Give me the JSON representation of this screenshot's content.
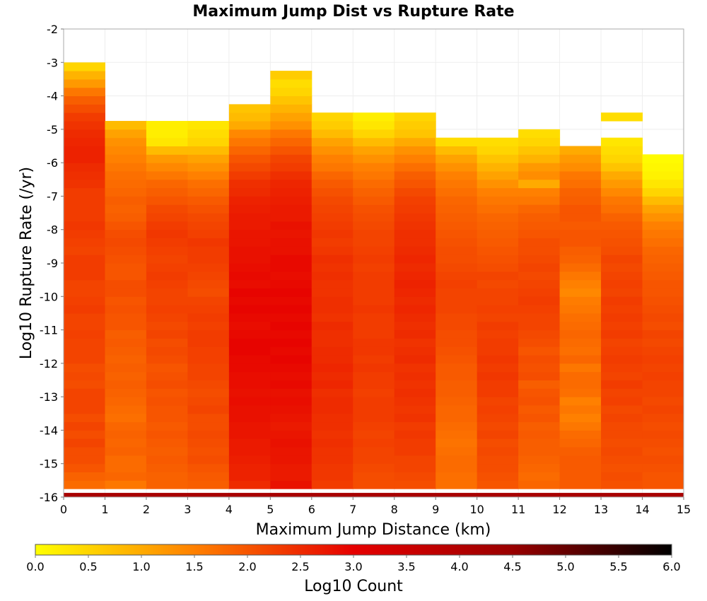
{
  "chart_data": {
    "type": "heatmap",
    "title": "Maximum Jump Dist vs Rupture Rate",
    "xlabel": "Maximum Jump Distance (km)",
    "ylabel": "Log10 Rupture Rate (/yr)",
    "xlim": [
      0,
      15
    ],
    "ylim": [
      -16,
      -2
    ],
    "x_ticks": [
      "0",
      "1",
      "2",
      "3",
      "4",
      "5",
      "6",
      "7",
      "8",
      "9",
      "10",
      "11",
      "12",
      "13",
      "14",
      "15"
    ],
    "y_ticks": [
      "-2",
      "-3",
      "-4",
      "-5",
      "-6",
      "-7",
      "-8",
      "-9",
      "-10",
      "-11",
      "-12",
      "-13",
      "-14",
      "-15",
      "-16"
    ],
    "x_bin_width": 1,
    "y_bin_width": 0.25,
    "y_bin_start": -15.75,
    "colorbar": {
      "label": "Log10 Count",
      "range": [
        0,
        6
      ],
      "ticks": [
        "0.0",
        "0.5",
        "1.0",
        "1.5",
        "2.0",
        "2.5",
        "3.0",
        "3.5",
        "4.0",
        "4.5",
        "5.0",
        "5.5",
        "6.0"
      ],
      "colors": [
        "#ffff00",
        "#ff8000",
        "#e60000",
        "#990000",
        "#000000"
      ]
    },
    "bottom_row": {
      "y_range": [
        -16,
        -15.875
      ],
      "value": 4.2
    },
    "columns": [
      {
        "x": 0.5,
        "values": [
          1.75,
          1.85,
          2.0,
          2.1,
          2.1,
          2.2,
          2.1,
          2.2,
          2.1,
          2.2,
          2.2,
          2.2,
          2.1,
          2.15,
          2.1,
          2.2,
          2.2,
          2.2,
          2.25,
          2.2,
          2.2,
          2.3,
          2.25,
          2.2,
          2.2,
          2.3,
          2.3,
          2.3,
          2.2,
          2.25,
          2.3,
          2.35,
          2.3,
          2.3,
          2.3,
          2.3,
          2.4,
          2.45,
          2.5,
          2.6,
          2.6,
          2.55,
          2.5,
          2.4,
          2.3,
          2.1,
          1.9,
          1.6,
          1.2,
          0.9,
          0.5
        ]
      },
      {
        "x": 1.5,
        "values": [
          1.6,
          1.8,
          1.75,
          1.75,
          1.85,
          1.8,
          1.85,
          1.8,
          1.7,
          1.75,
          1.8,
          1.85,
          1.9,
          1.85,
          1.9,
          1.85,
          1.9,
          1.95,
          1.9,
          2.0,
          2.0,
          2.05,
          2.0,
          2.1,
          2.1,
          2.0,
          2.0,
          2.05,
          2.1,
          2.15,
          2.1,
          2.0,
          1.9,
          1.85,
          1.9,
          1.8,
          1.75,
          1.7,
          1.6,
          1.5,
          1.4,
          1.3,
          1.1,
          0.8
        ]
      },
      {
        "x": 2.5,
        "values": [
          1.85,
          1.85,
          1.9,
          1.95,
          1.9,
          1.95,
          2.0,
          1.95,
          2.0,
          2.0,
          2.05,
          2.0,
          2.1,
          2.05,
          2.0,
          2.1,
          2.15,
          2.1,
          2.2,
          2.15,
          2.2,
          2.25,
          2.2,
          2.2,
          2.25,
          2.3,
          2.25,
          2.2,
          2.25,
          2.3,
          2.35,
          2.3,
          2.2,
          2.15,
          2.0,
          1.9,
          1.8,
          1.6,
          1.4,
          1.2,
          0.8,
          0.3,
          0.2,
          0.2
        ]
      },
      {
        "x": 3.5,
        "values": [
          1.9,
          1.95,
          2.0,
          2.1,
          2.05,
          2.1,
          2.15,
          2.1,
          2.1,
          2.2,
          2.15,
          2.1,
          2.15,
          2.2,
          2.2,
          2.25,
          2.25,
          2.3,
          2.3,
          2.25,
          2.3,
          2.25,
          2.2,
          2.1,
          2.15,
          2.2,
          2.25,
          2.3,
          2.3,
          2.35,
          2.25,
          2.2,
          2.15,
          2.05,
          1.95,
          1.8,
          1.7,
          1.5,
          1.3,
          1.1,
          0.8,
          0.5,
          0.4,
          0.3
        ]
      },
      {
        "x": 4.5,
        "values": [
          2.5,
          2.6,
          2.6,
          2.65,
          2.7,
          2.7,
          2.75,
          2.75,
          2.8,
          2.8,
          2.85,
          2.8,
          2.85,
          2.85,
          2.9,
          2.9,
          2.95,
          2.95,
          2.9,
          2.85,
          2.9,
          2.95,
          2.9,
          2.95,
          2.85,
          2.9,
          2.85,
          2.8,
          2.8,
          2.75,
          2.75,
          2.7,
          2.7,
          2.65,
          2.6,
          2.5,
          2.45,
          2.3,
          2.15,
          2.0,
          1.8,
          1.6,
          1.4,
          1.0,
          0.8,
          0.7
        ]
      },
      {
        "x": 5.5,
        "values": [
          2.8,
          2.7,
          2.7,
          2.75,
          2.75,
          2.8,
          2.75,
          2.7,
          2.75,
          2.8,
          2.85,
          2.8,
          2.9,
          2.85,
          2.9,
          2.95,
          2.9,
          2.95,
          2.9,
          2.95,
          2.9,
          2.95,
          2.9,
          2.95,
          2.9,
          2.85,
          2.9,
          2.9,
          2.8,
          2.8,
          2.75,
          2.8,
          2.7,
          2.7,
          2.65,
          2.6,
          2.55,
          2.45,
          2.3,
          2.2,
          2.0,
          1.8,
          1.6,
          1.3,
          1.1,
          0.9,
          0.7,
          0.5,
          0.4,
          0.6
        ]
      },
      {
        "x": 6.5,
        "values": [
          2.3,
          2.35,
          2.35,
          2.4,
          2.4,
          2.45,
          2.4,
          2.45,
          2.45,
          2.5,
          2.5,
          2.45,
          2.55,
          2.5,
          2.55,
          2.5,
          2.5,
          2.45,
          2.45,
          2.5,
          2.4,
          2.45,
          2.45,
          2.4,
          2.4,
          2.45,
          2.4,
          2.45,
          2.35,
          2.3,
          2.35,
          2.3,
          2.25,
          2.2,
          2.15,
          2.05,
          1.95,
          1.8,
          1.6,
          1.5,
          1.3,
          1.1,
          0.8,
          0.6,
          0.5
        ]
      },
      {
        "x": 7.5,
        "values": [
          2.1,
          2.1,
          2.15,
          2.2,
          2.2,
          2.25,
          2.2,
          2.25,
          2.3,
          2.3,
          2.3,
          2.25,
          2.3,
          2.3,
          2.35,
          2.3,
          2.35,
          2.35,
          2.3,
          2.3,
          2.3,
          2.35,
          2.3,
          2.3,
          2.3,
          2.3,
          2.25,
          2.3,
          2.25,
          2.2,
          2.2,
          2.15,
          2.1,
          2.05,
          1.95,
          1.85,
          1.75,
          1.6,
          1.5,
          1.3,
          1.1,
          0.8,
          0.5,
          0.3,
          0.2
        ]
      },
      {
        "x": 8.5,
        "values": [
          2.1,
          2.15,
          2.2,
          2.2,
          2.3,
          2.3,
          2.35,
          2.3,
          2.4,
          2.35,
          2.4,
          2.45,
          2.4,
          2.45,
          2.4,
          2.5,
          2.45,
          2.4,
          2.5,
          2.45,
          2.5,
          2.55,
          2.5,
          2.55,
          2.6,
          2.55,
          2.5,
          2.55,
          2.5,
          2.45,
          2.45,
          2.4,
          2.35,
          2.3,
          2.25,
          2.15,
          2.0,
          1.9,
          1.7,
          1.5,
          1.3,
          1.0,
          0.7,
          0.6,
          0.5
        ]
      },
      {
        "x": 9.5,
        "values": [
          1.7,
          1.7,
          1.75,
          1.75,
          1.7,
          1.65,
          1.7,
          1.75,
          1.8,
          1.8,
          1.85,
          1.9,
          1.9,
          1.95,
          1.95,
          2.0,
          2.05,
          2.1,
          2.1,
          2.15,
          2.15,
          2.2,
          2.2,
          2.2,
          2.25,
          2.2,
          2.15,
          2.1,
          2.1,
          2.05,
          2.0,
          1.95,
          1.9,
          1.85,
          1.8,
          1.7,
          1.6,
          1.5,
          1.3,
          1.1,
          0.8,
          0.4
        ]
      },
      {
        "x": 10.5,
        "values": [
          2.0,
          2.05,
          2.1,
          2.1,
          2.15,
          2.1,
          2.2,
          2.15,
          2.2,
          2.25,
          2.2,
          2.3,
          2.3,
          2.35,
          2.3,
          2.35,
          2.3,
          2.3,
          2.25,
          2.3,
          2.2,
          2.25,
          2.2,
          2.2,
          2.15,
          2.2,
          2.1,
          2.05,
          2.0,
          1.95,
          1.9,
          1.85,
          1.8,
          1.7,
          1.6,
          1.5,
          1.3,
          1.1,
          0.9,
          0.7,
          0.5,
          0.4
        ]
      },
      {
        "x": 11.5,
        "values": [
          1.8,
          1.75,
          1.8,
          1.85,
          1.9,
          1.9,
          1.95,
          1.9,
          2.0,
          1.95,
          2.05,
          2.0,
          1.9,
          2.1,
          2.05,
          2.1,
          2.0,
          2.1,
          2.15,
          2.2,
          2.2,
          2.25,
          2.3,
          2.25,
          2.2,
          2.15,
          2.2,
          2.15,
          2.1,
          2.1,
          2.0,
          1.95,
          1.9,
          1.8,
          1.6,
          1.5,
          1.0,
          1.35,
          1.2,
          0.9,
          0.7,
          0.5,
          0.4
        ]
      },
      {
        "x": 12.5,
        "values": [
          1.95,
          1.95,
          1.95,
          1.95,
          1.9,
          1.8,
          1.75,
          1.6,
          1.5,
          1.6,
          1.5,
          1.7,
          1.75,
          1.75,
          1.6,
          1.8,
          1.7,
          1.75,
          1.8,
          1.75,
          1.7,
          1.6,
          1.55,
          1.4,
          1.5,
          1.6,
          1.75,
          1.85,
          1.9,
          2.0,
          2.0,
          1.95,
          2.0,
          2.0,
          1.9,
          1.85,
          1.7,
          1.6,
          1.35,
          1.2,
          1.0
        ]
      },
      {
        "x": 13.5,
        "values": [
          2.05,
          2.1,
          2.05,
          2.1,
          2.15,
          2.1,
          2.15,
          2.15,
          2.2,
          2.15,
          2.25,
          2.2,
          2.3,
          2.2,
          2.25,
          2.3,
          2.25,
          2.2,
          2.3,
          2.25,
          2.3,
          2.25,
          2.3,
          2.2,
          2.25,
          2.2,
          2.15,
          2.2,
          2.1,
          2.05,
          2.0,
          1.95,
          1.85,
          1.7,
          1.6,
          1.4,
          1.2,
          1.0,
          0.7,
          0.5,
          0.4,
          0.3,
          null,
          null,
          0.4
        ]
      },
      {
        "x": 14.5,
        "values": [
          2.0,
          2.0,
          2.05,
          2.1,
          2.05,
          2.1,
          2.15,
          2.1,
          2.15,
          2.2,
          2.15,
          2.2,
          2.2,
          2.25,
          2.2,
          2.25,
          2.2,
          2.15,
          2.2,
          2.1,
          2.15,
          2.1,
          2.05,
          2.0,
          2.0,
          1.95,
          1.9,
          1.85,
          1.8,
          1.7,
          1.6,
          1.5,
          1.3,
          1.1,
          0.8,
          0.5,
          0.3,
          0.15,
          0.1,
          0.05
        ]
      }
    ]
  }
}
